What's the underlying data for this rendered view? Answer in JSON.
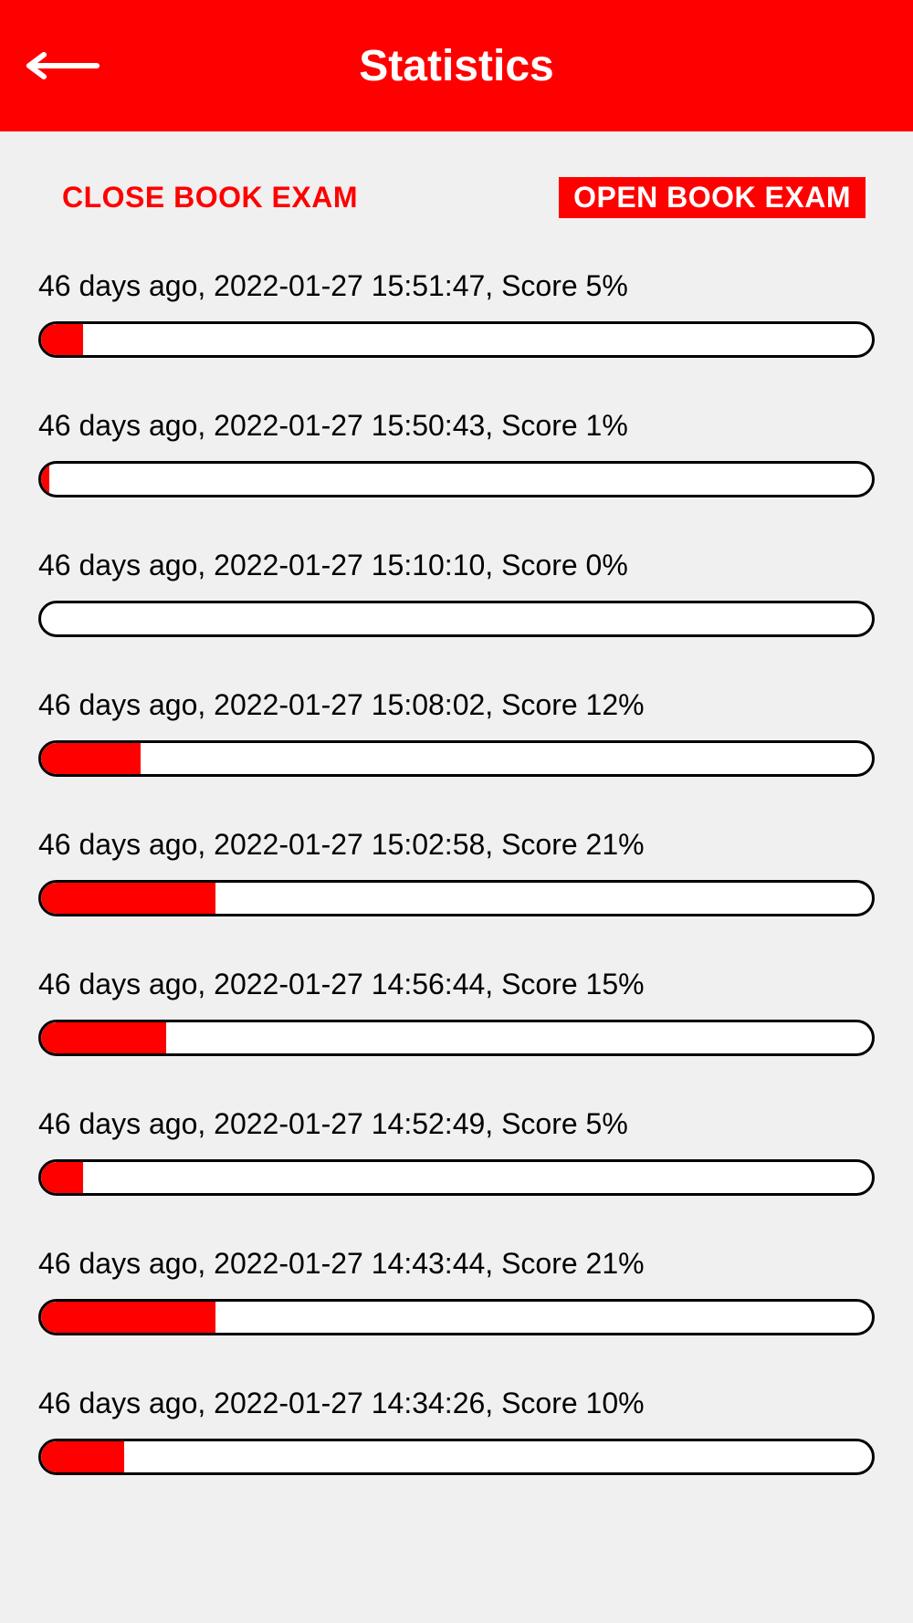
{
  "header": {
    "title": "Statistics"
  },
  "tabs": {
    "close_book": "CLOSE BOOK EXAM",
    "open_book": "OPEN BOOK EXAM",
    "active": "open_book"
  },
  "colors": {
    "primary": "#ff0000",
    "background": "#f0f0f0",
    "text": "#000000",
    "bar_bg": "#ffffff",
    "bar_border": "#000000"
  },
  "stats": [
    {
      "label": "46 days ago, 2022-01-27 15:51:47, Score 5%",
      "percent": 5
    },
    {
      "label": "46 days ago, 2022-01-27 15:50:43, Score 1%",
      "percent": 1
    },
    {
      "label": "46 days ago, 2022-01-27 15:10:10, Score 0%",
      "percent": 0
    },
    {
      "label": "46 days ago, 2022-01-27 15:08:02, Score 12%",
      "percent": 12
    },
    {
      "label": "46 days ago, 2022-01-27 15:02:58, Score 21%",
      "percent": 21
    },
    {
      "label": "46 days ago, 2022-01-27 14:56:44, Score 15%",
      "percent": 15
    },
    {
      "label": "46 days ago, 2022-01-27 14:52:49, Score 5%",
      "percent": 5
    },
    {
      "label": "46 days ago, 2022-01-27 14:43:44, Score 21%",
      "percent": 21
    },
    {
      "label": "46 days ago, 2022-01-27 14:34:26, Score 10%",
      "percent": 10
    }
  ]
}
